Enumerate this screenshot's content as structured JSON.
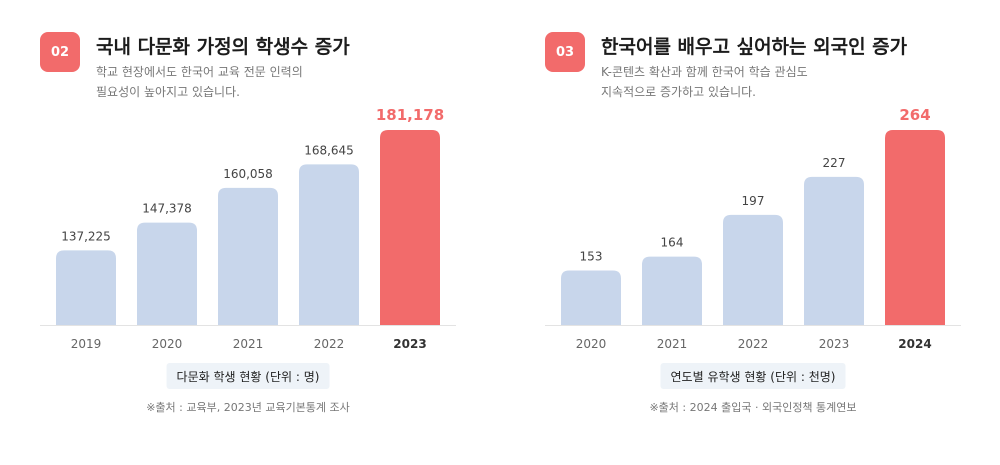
{
  "colors": {
    "accent": "#f26b6b",
    "bar": "#c8d6eb",
    "axis": "#e3e3e3"
  },
  "panels": [
    {
      "badge": "02",
      "title": "국내 다문화 가정의 학생수 증가",
      "description": [
        "학교 현장에서도 한국어 교육 전문 인력의",
        "필요성이 높아지고 있습니다."
      ],
      "caption": "다문화 학생 현황 (단위 : 명)",
      "source": "※출처 : 교육부, 2023년 교육기본통계 조사"
    },
    {
      "badge": "03",
      "title": "한국어를 배우고 싶어하는 외국인 증가",
      "description": [
        "K-콘텐츠 확산과 함께 한국어 학습 관심도",
        "지속적으로 증가하고 있습니다."
      ],
      "caption": "연도별 유학생 현황 (단위 : 천명)",
      "source": "※출처 : 2024 출입국 · 외국인정책 통계연보"
    }
  ],
  "chart_data": [
    {
      "type": "bar",
      "categories": [
        "2019",
        "2020",
        "2021",
        "2022",
        "2023"
      ],
      "values": [
        137225,
        147378,
        160058,
        168645,
        181178
      ],
      "value_labels": [
        "137,225",
        "147,378",
        "160,058",
        "168,645",
        "181,178"
      ],
      "highlight_index": 4,
      "ylim": [
        110000,
        181178
      ],
      "title": "",
      "xlabel": "",
      "ylabel": ""
    },
    {
      "type": "bar",
      "categories": [
        "2020",
        "2021",
        "2022",
        "2023",
        "2024"
      ],
      "values": [
        153,
        164,
        197,
        227,
        264
      ],
      "value_labels": [
        "153",
        "164",
        "197",
        "227",
        "264"
      ],
      "highlight_index": 4,
      "ylim": [
        110,
        264
      ],
      "title": "",
      "xlabel": "",
      "ylabel": ""
    }
  ]
}
